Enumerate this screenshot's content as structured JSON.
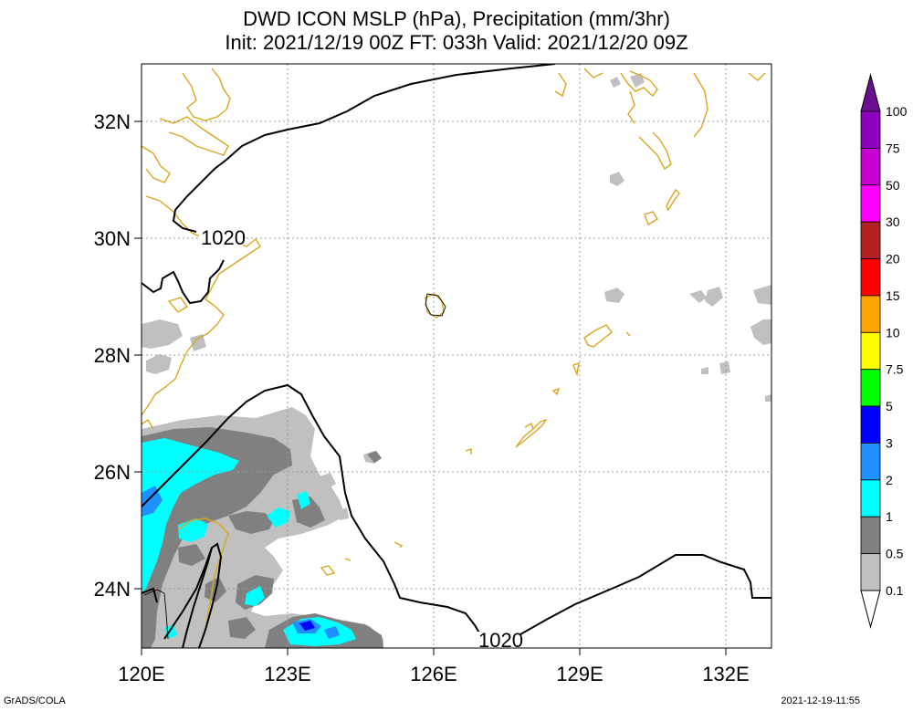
{
  "title": {
    "line1": "DWD ICON MSLP (hPa), Precipitation (mm/3hr)",
    "line2": "Init: 2021/12/19 00Z  FT: 033h  Valid: 2021/12/20 09Z"
  },
  "axes": {
    "lon_labels": [
      "120E",
      "123E",
      "126E",
      "129E",
      "132E"
    ],
    "lat_labels": [
      "32N",
      "30N",
      "28N",
      "26N",
      "24N"
    ]
  },
  "isobars": {
    "labels": [
      "1020",
      "1020"
    ]
  },
  "colorbar": {
    "levels": [
      "100",
      "75",
      "50",
      "30",
      "20",
      "15",
      "10",
      "7.5",
      "5",
      "3",
      "2",
      "1",
      "0.5",
      "0.1"
    ],
    "colors": [
      "#6a0f8f",
      "#8f00bf",
      "#c800d2",
      "#ff00ff",
      "#b22222",
      "#ff0000",
      "#ffa500",
      "#ffff00",
      "#00ff00",
      "#0000ff",
      "#1e90ff",
      "#00ffff",
      "#808080",
      "#c0c0c0",
      "#ffffff"
    ]
  },
  "footer": {
    "left": "GrADS/COLA",
    "right": "2021-12-19-11:55"
  }
}
